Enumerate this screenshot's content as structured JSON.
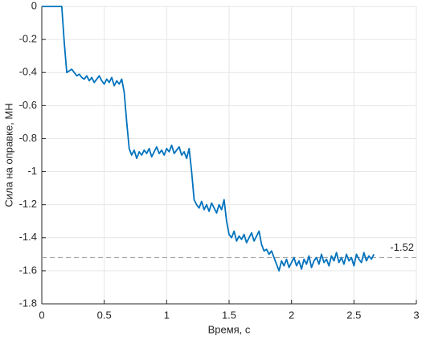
{
  "chart_data": {
    "type": "line",
    "xlabel": "Время, с",
    "ylabel": "Сила на оправке, МН",
    "x": [
      0,
      0.02,
      0.04,
      0.06,
      0.08,
      0.1,
      0.12,
      0.14,
      0.16,
      0.18,
      0.2,
      0.22,
      0.24,
      0.26,
      0.28,
      0.3,
      0.32,
      0.34,
      0.36,
      0.38,
      0.4,
      0.42,
      0.44,
      0.46,
      0.48,
      0.5,
      0.52,
      0.54,
      0.56,
      0.58,
      0.6,
      0.62,
      0.64,
      0.66,
      0.68,
      0.7,
      0.72,
      0.74,
      0.76,
      0.78,
      0.8,
      0.82,
      0.84,
      0.86,
      0.88,
      0.9,
      0.92,
      0.94,
      0.96,
      0.98,
      1.0,
      1.02,
      1.04,
      1.06,
      1.08,
      1.1,
      1.12,
      1.14,
      1.16,
      1.18,
      1.2,
      1.22,
      1.24,
      1.26,
      1.28,
      1.3,
      1.32,
      1.34,
      1.36,
      1.38,
      1.4,
      1.42,
      1.44,
      1.46,
      1.48,
      1.5,
      1.52,
      1.54,
      1.56,
      1.58,
      1.6,
      1.62,
      1.64,
      1.66,
      1.68,
      1.7,
      1.72,
      1.74,
      1.76,
      1.78,
      1.8,
      1.82,
      1.84,
      1.86,
      1.88,
      1.9,
      1.92,
      1.94,
      1.96,
      1.98,
      2.0,
      2.02,
      2.04,
      2.06,
      2.08,
      2.1,
      2.12,
      2.14,
      2.16,
      2.18,
      2.2,
      2.22,
      2.24,
      2.26,
      2.28,
      2.3,
      2.32,
      2.34,
      2.36,
      2.38,
      2.4,
      2.42,
      2.44,
      2.46,
      2.48,
      2.5,
      2.52,
      2.54,
      2.56,
      2.58,
      2.6,
      2.62,
      2.64,
      2.66
    ],
    "series": [
      {
        "color": "#0072bd",
        "values": [
          0,
          0,
          0,
          0,
          0,
          0,
          0,
          0,
          0,
          -0.22,
          -0.4,
          -0.39,
          -0.38,
          -0.4,
          -0.42,
          -0.41,
          -0.43,
          -0.44,
          -0.42,
          -0.45,
          -0.43,
          -0.46,
          -0.44,
          -0.42,
          -0.45,
          -0.47,
          -0.44,
          -0.46,
          -0.43,
          -0.48,
          -0.45,
          -0.47,
          -0.44,
          -0.52,
          -0.7,
          -0.86,
          -0.9,
          -0.87,
          -0.92,
          -0.88,
          -0.9,
          -0.87,
          -0.89,
          -0.86,
          -0.91,
          -0.88,
          -0.85,
          -0.89,
          -0.87,
          -0.9,
          -0.86,
          -0.88,
          -0.84,
          -0.89,
          -0.87,
          -0.85,
          -0.9,
          -0.88,
          -0.92,
          -0.86,
          -1.0,
          -1.17,
          -1.2,
          -1.22,
          -1.18,
          -1.23,
          -1.2,
          -1.24,
          -1.19,
          -1.22,
          -1.25,
          -1.2,
          -1.23,
          -1.17,
          -1.3,
          -1.38,
          -1.4,
          -1.36,
          -1.42,
          -1.39,
          -1.41,
          -1.38,
          -1.43,
          -1.4,
          -1.37,
          -1.42,
          -1.39,
          -1.36,
          -1.44,
          -1.48,
          -1.47,
          -1.5,
          -1.48,
          -1.52,
          -1.56,
          -1.6,
          -1.54,
          -1.57,
          -1.53,
          -1.58,
          -1.55,
          -1.52,
          -1.57,
          -1.54,
          -1.59,
          -1.53,
          -1.56,
          -1.51,
          -1.58,
          -1.54,
          -1.52,
          -1.56,
          -1.5,
          -1.55,
          -1.53,
          -1.57,
          -1.51,
          -1.54,
          -1.49,
          -1.55,
          -1.52,
          -1.56,
          -1.5,
          -1.54,
          -1.52,
          -1.57,
          -1.5,
          -1.53,
          -1.55,
          -1.49,
          -1.54,
          -1.51,
          -1.53,
          -1.5
        ]
      }
    ],
    "hline": -1.52,
    "xlim": [
      0,
      3
    ],
    "xticks": [
      0,
      0.5,
      1,
      1.5,
      2,
      2.5,
      3
    ],
    "ylim": [
      -1.8,
      0
    ],
    "yticks": [
      0,
      -0.2,
      -0.4,
      -0.6,
      -0.8,
      -1,
      -1.2,
      -1.4,
      -1.6,
      -1.8
    ],
    "grid": true
  }
}
